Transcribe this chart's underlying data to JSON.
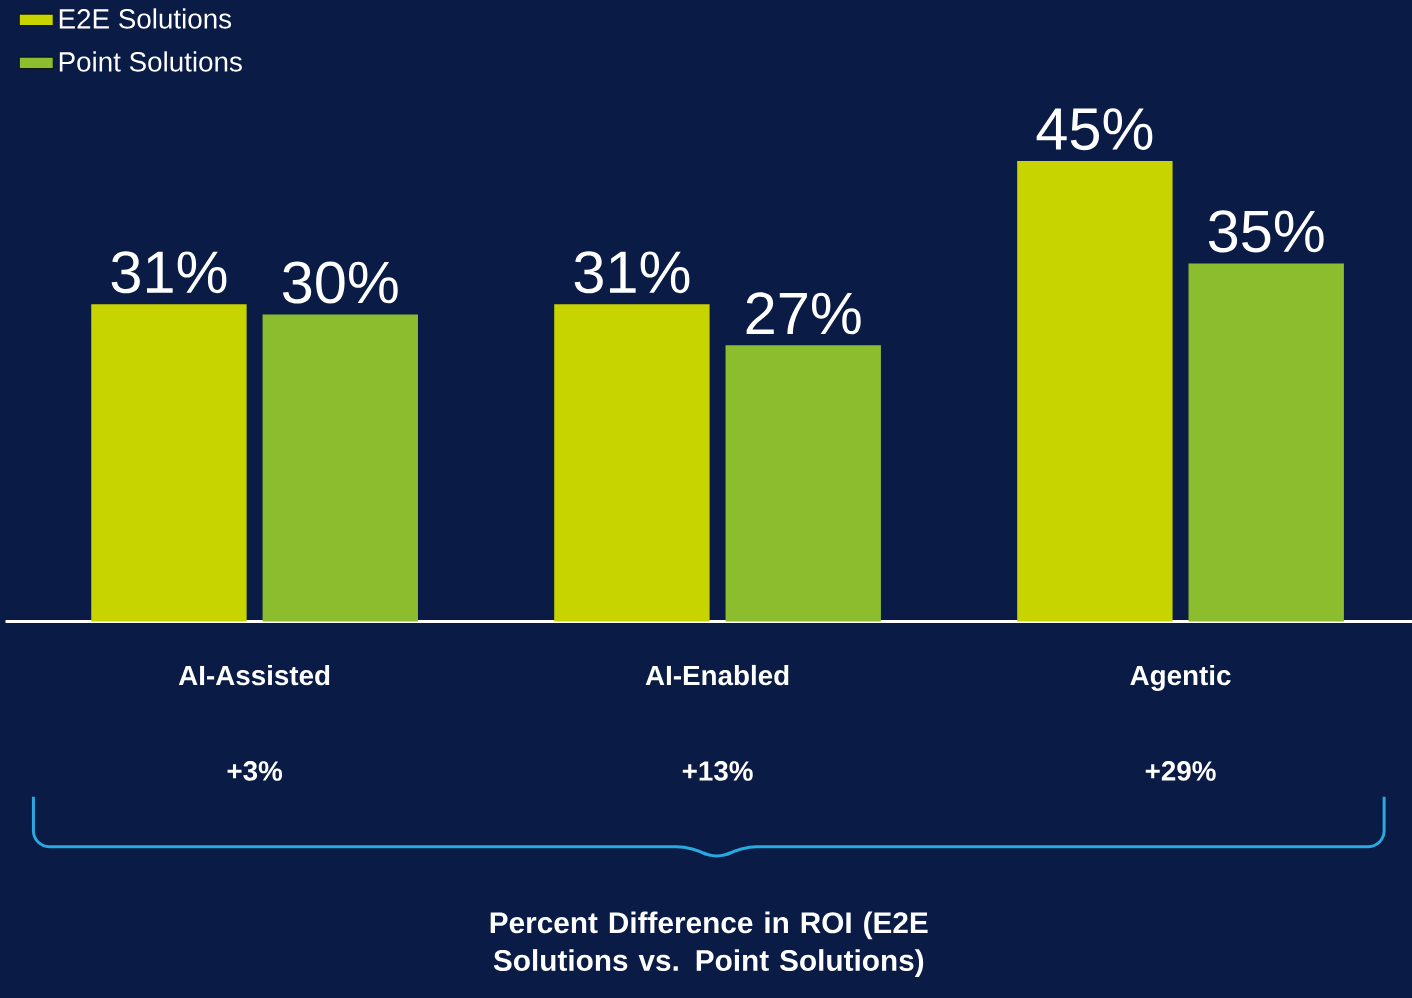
{
  "chart_data": {
    "type": "bar",
    "categories": [
      "AI-Assisted",
      "AI-Enabled",
      "Agentic"
    ],
    "series": [
      {
        "name": "E2E Solutions",
        "color": "#c8d400",
        "values": [
          31,
          31,
          45
        ],
        "value_labels": [
          "31%",
          "31%",
          "45%"
        ]
      },
      {
        "name": "Point Solutions",
        "color": "#8cbd2e",
        "values": [
          30,
          27,
          35
        ],
        "value_labels": [
          "30%",
          "27%",
          "35%"
        ]
      }
    ],
    "annotations": [
      "+3%",
      "+13%",
      "+29%",
      "Percent Difference in ROI (E2E Solutions vs. Point Solutions)"
    ],
    "legend": "top left"
  }
}
